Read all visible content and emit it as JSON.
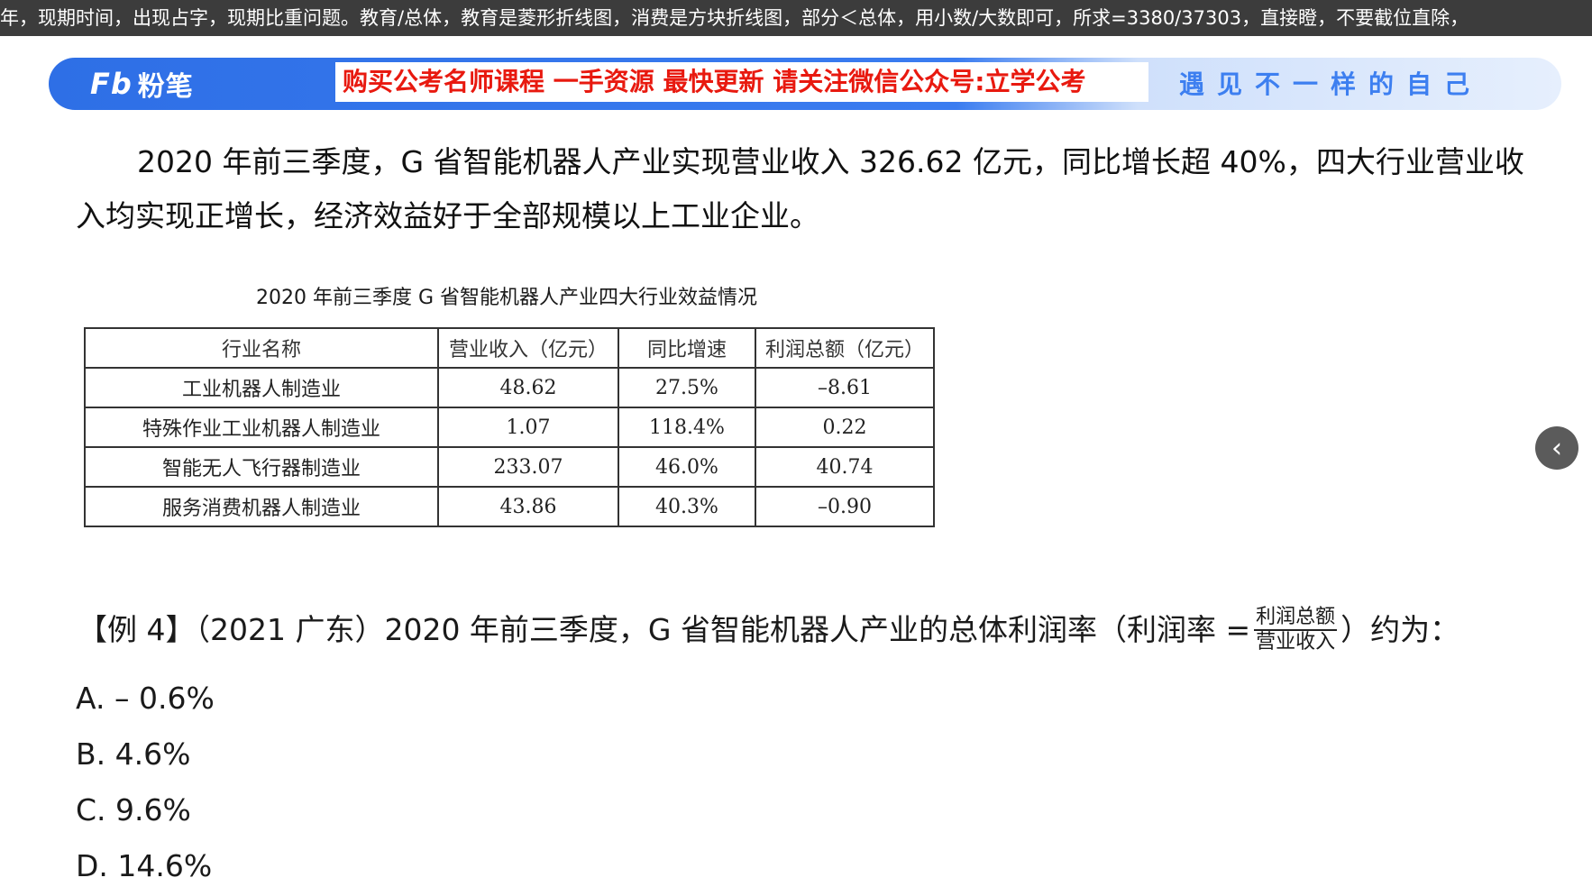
{
  "ticker": {
    "text": "年，现期时间，出现占字，现期比重问题。教育/总体，教育是菱形折线图，消费是方块折线图，部分＜总体，用小数/大数即可，所求=3380/37303，直接瞪，不要截位直除，"
  },
  "banner": {
    "logo_mark": "Fb",
    "logo_text": "粉笔",
    "promo": "购买公考名师课程 一手资源 最快更新 请关注微信公众号:立学公考",
    "slogan": "遇见不一样的自己"
  },
  "passage": {
    "text": "2020 年前三季度，G 省智能机器人产业实现营业收入 326.62 亿元，同比增长超 40%，四大行业营业收入均实现正增长，经济效益好于全部规模以上工业企业。"
  },
  "table": {
    "caption": "2020 年前三季度 G 省智能机器人产业四大行业效益情况",
    "headers": [
      "行业名称",
      "营业收入（亿元）",
      "同比增速",
      "利润总额（亿元）"
    ],
    "rows": [
      [
        "工业机器人制造业",
        "48.62",
        "27.5%",
        "–8.61"
      ],
      [
        "特殊作业工业机器人制造业",
        "1.07",
        "118.4%",
        "0.22"
      ],
      [
        "智能无人飞行器制造业",
        "233.07",
        "46.0%",
        "40.74"
      ],
      [
        "服务消费机器人制造业",
        "43.86",
        "40.3%",
        "–0.90"
      ]
    ]
  },
  "question": {
    "prefix": "【例 4】（2021 广东）2020 年前三季度，G 省智能机器人产业的总体利润率（利润率 = ",
    "frac_num": "利润总额",
    "frac_den": "营业收入",
    "suffix": "）约为：",
    "options": [
      "A. – 0.6%",
      "B. 4.6%",
      "C. 9.6%",
      "D. 14.6%"
    ]
  },
  "nav": {
    "back_icon": "chevron-left-icon",
    "back_glyph": "‹"
  }
}
